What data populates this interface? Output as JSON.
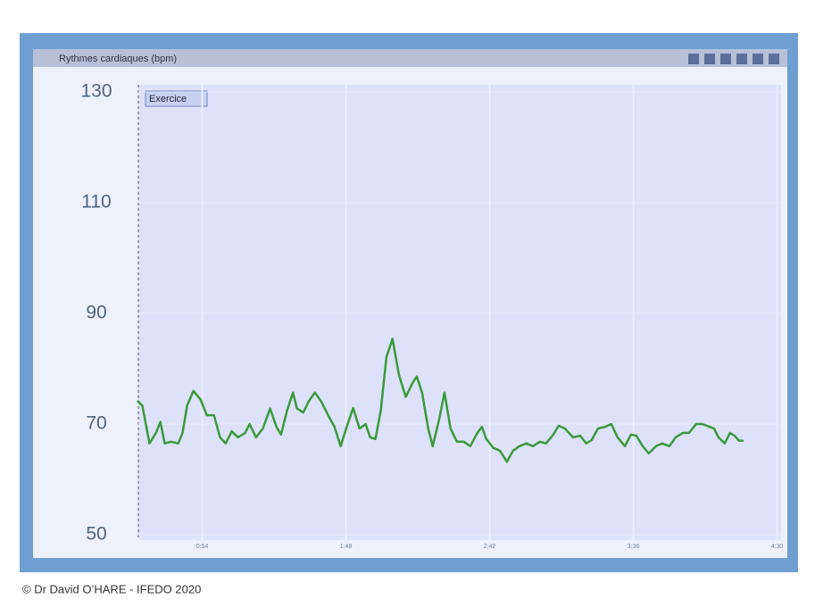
{
  "chart_data": {
    "type": "line",
    "title": "Rythmes cardiaques (bpm)",
    "annotation": "Exercice",
    "footer": "© Dr David O’HARE - IFEDO 2020",
    "xlim": [
      30,
      271.5
    ],
    "xticks": [
      {
        "value": 54,
        "label": "0:54"
      },
      {
        "value": 108,
        "label": "1:48"
      },
      {
        "value": 162,
        "label": "2:42"
      },
      {
        "value": 216,
        "label": "3:36"
      },
      {
        "value": 270,
        "label": "4:30"
      }
    ],
    "ylim": [
      50,
      130
    ],
    "yticks": [
      50,
      70,
      90,
      110,
      130
    ],
    "grid": true,
    "series": [
      {
        "color": "#3a9a3a",
        "x": [
          29.9,
          31.5,
          34.2,
          36.6,
          38.3,
          39.9,
          42.3,
          45.0,
          46.6,
          48.3,
          50.7,
          53.4,
          55.7,
          58.4,
          60.7,
          62.8,
          65.1,
          67.4,
          70.1,
          71.8,
          74.2,
          76.8,
          79.5,
          81.9,
          83.6,
          85.9,
          88.1,
          89.6,
          92.0,
          94.0,
          96.3,
          98.7,
          101.3,
          103.7,
          106.0,
          108.1,
          110.7,
          113.1,
          115.4,
          117.1,
          119.1,
          121.1,
          123.2,
          125.5,
          127.9,
          130.5,
          132.9,
          134.6,
          136.6,
          138.9,
          140.6,
          143.0,
          145.0,
          147.3,
          149.7,
          152.3,
          154.7,
          157.4,
          159.1,
          160.7,
          163.4,
          165.8,
          168.5,
          170.8,
          173.2,
          175.8,
          178.2,
          180.9,
          183.2,
          185.9,
          187.9,
          190.3,
          193.3,
          196.0,
          198.3,
          200.3,
          202.7,
          205.4,
          207.7,
          210.1,
          212.8,
          215.1,
          217.1,
          219.5,
          221.8,
          224.5,
          226.8,
          229.5,
          231.9,
          234.6,
          236.9,
          239.6,
          241.9,
          244.6,
          246.3,
          248.0,
          250.3,
          252.3,
          254.0,
          255.7,
          257.0
        ],
        "values": [
          74.1,
          73.3,
          66.5,
          68.4,
          70.4,
          66.5,
          66.8,
          66.5,
          68.4,
          73.3,
          76.0,
          74.4,
          71.6,
          71.6,
          67.6,
          66.5,
          68.7,
          67.6,
          68.4,
          70.0,
          67.6,
          69.2,
          72.8,
          69.5,
          68.1,
          72.5,
          75.7,
          72.8,
          72.1,
          74.1,
          75.7,
          74.1,
          71.6,
          69.5,
          66.0,
          69.2,
          72.9,
          69.2,
          70.0,
          67.6,
          67.3,
          72.5,
          82.1,
          85.4,
          78.9,
          74.9,
          77.3,
          78.6,
          75.7,
          69.2,
          66.0,
          70.8,
          75.7,
          69.2,
          66.8,
          66.8,
          66.0,
          68.4,
          69.5,
          67.3,
          65.7,
          65.2,
          63.2,
          65.2,
          66.0,
          66.5,
          66.0,
          66.8,
          66.5,
          68.1,
          69.7,
          69.2,
          67.6,
          67.9,
          66.5,
          67.1,
          69.2,
          69.5,
          70.0,
          67.6,
          66.0,
          68.1,
          67.9,
          66.0,
          64.7,
          66.0,
          66.5,
          66.0,
          67.6,
          68.4,
          68.4,
          70.0,
          70.0,
          69.5,
          69.2,
          67.6,
          66.5,
          68.4,
          67.9,
          67.0,
          67.0
        ]
      }
    ]
  }
}
